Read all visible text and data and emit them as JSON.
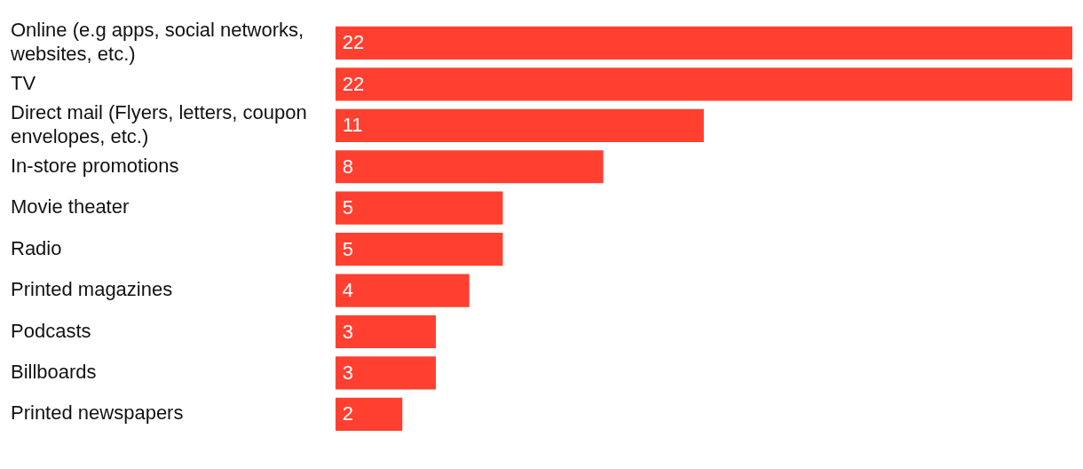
{
  "chart_data": {
    "type": "bar",
    "orientation": "horizontal",
    "categories": [
      "Online (e.g apps, social networks, websites, etc.)",
      "TV",
      "Direct mail (Flyers, letters, coupon envelopes, etc.)",
      "In-store promotions",
      "Movie theater",
      "Radio",
      "Printed magazines",
      "Podcasts",
      "Billboards",
      "Printed newspapers"
    ],
    "values": [
      22,
      22,
      11,
      8,
      5,
      5,
      4,
      3,
      3,
      2
    ],
    "color": "#ff4030",
    "data_labels": true
  }
}
